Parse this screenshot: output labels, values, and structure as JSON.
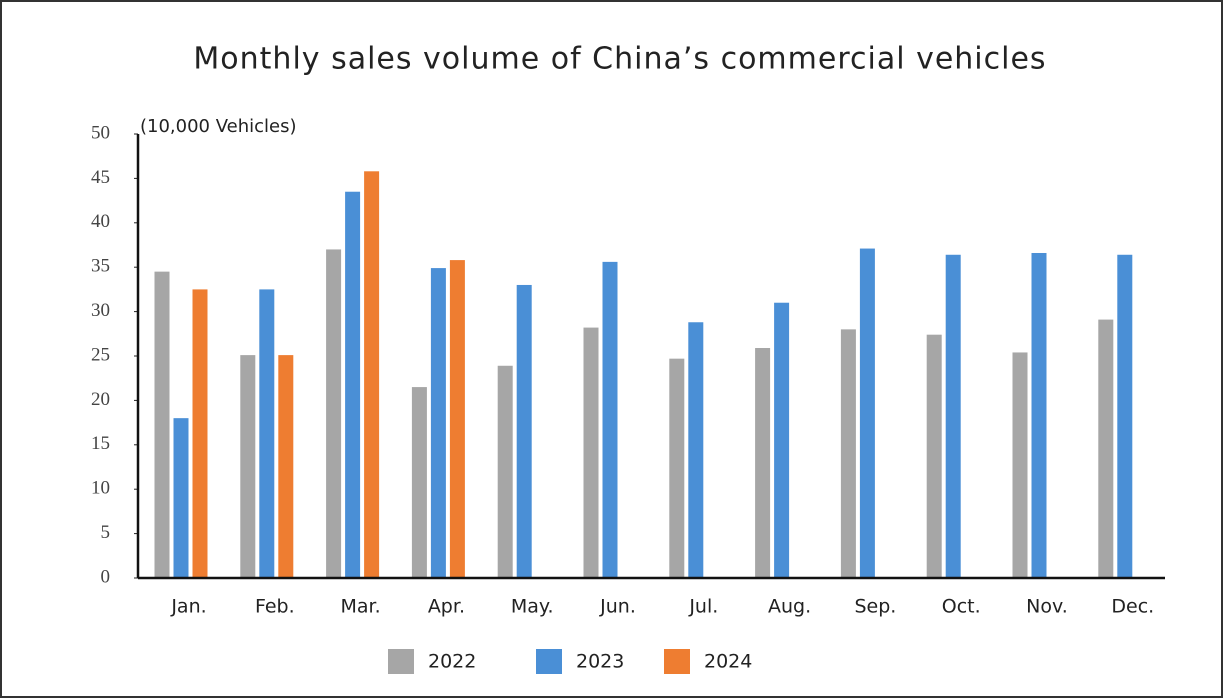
{
  "chart_data": {
    "type": "bar",
    "title": "Monthly sales volume of China’s commercial vehicles",
    "y_axis_label": "(10,000 Vehicles)",
    "categories": [
      "Jan.",
      "Feb.",
      "Mar.",
      "Apr.",
      "May.",
      "Jun.",
      "Jul.",
      "Aug.",
      "Sep.",
      "Oct.",
      "Nov.",
      "Dec."
    ],
    "series": [
      {
        "name": "2022",
        "color": "#a6a6a6",
        "values": [
          34.5,
          25.1,
          37,
          21.5,
          23.9,
          28.2,
          24.7,
          25.9,
          28,
          27.4,
          25.4,
          29.1
        ]
      },
      {
        "name": "2023",
        "color": "#4a8fd6",
        "values": [
          18,
          32.5,
          43.5,
          34.9,
          33,
          35.6,
          28.8,
          31,
          37.1,
          36.4,
          36.6,
          36.4
        ]
      },
      {
        "name": "2024",
        "color": "#ee7d31",
        "values": [
          32.5,
          25.1,
          45.8,
          35.8,
          null,
          null,
          null,
          null,
          null,
          null,
          null,
          null
        ]
      }
    ],
    "ylim": [
      0,
      50
    ],
    "yticks": [
      0,
      5,
      10,
      15,
      20,
      25,
      30,
      35,
      40,
      45,
      50
    ],
    "grid": false
  }
}
